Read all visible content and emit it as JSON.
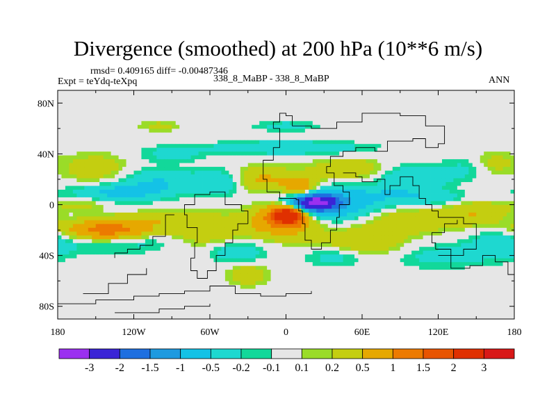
{
  "chart_data": {
    "type": "heatmap",
    "title": "Divergence (smoothed) at 200 hPa (10**6 m/s)",
    "subtitle_stats": "rmsd= 0.409165 diff= -0.00487346",
    "subtitle_expt": "Expt = teYdq-teXpq",
    "subtitle_case": "338_8_MaBP - 338_8_MaBP",
    "subtitle_period": "ANN",
    "xlim": [
      -180,
      180
    ],
    "ylim": [
      -90,
      90
    ],
    "x_ticks": [
      {
        "value": -180,
        "label": "180"
      },
      {
        "value": -120,
        "label": "120W"
      },
      {
        "value": -60,
        "label": "60W"
      },
      {
        "value": 0,
        "label": "0"
      },
      {
        "value": 60,
        "label": "60E"
      },
      {
        "value": 120,
        "label": "120E"
      },
      {
        "value": 180,
        "label": "180"
      }
    ],
    "y_ticks": [
      {
        "value": 80,
        "label": "80N"
      },
      {
        "value": 40,
        "label": "40N"
      },
      {
        "value": 0,
        "label": "0"
      },
      {
        "value": -40,
        "label": "40S"
      },
      {
        "value": -80,
        "label": "80S"
      }
    ],
    "levels": [
      "-3",
      "-2",
      "-1.5",
      "-1",
      "-0.5",
      "-0.2",
      "-0.1",
      "0.1",
      "0.2",
      "0.5",
      "1",
      "1.5",
      "2",
      "3"
    ],
    "colors": [
      "#9B30F0",
      "#3A24D6",
      "#1E6FE0",
      "#1E9AE0",
      "#14C2E6",
      "#1ED8D0",
      "#12D89A",
      "#E6E6E6",
      "#9ADC28",
      "#C4CE10",
      "#E6A800",
      "#EC7A00",
      "#E85400",
      "#E03000",
      "#D81818"
    ],
    "blobs": [
      {
        "lon": 22,
        "lat": 2,
        "rlon": 16,
        "rlat": 6,
        "v": -2.3
      },
      {
        "lon": 20,
        "lat": 2,
        "rlon": 28,
        "rlat": 10,
        "v": -1.2
      },
      {
        "lon": 35,
        "lat": -1,
        "rlon": 45,
        "rlat": 13,
        "v": -0.6
      },
      {
        "lon": 2,
        "lat": -8,
        "rlon": 12,
        "rlat": 7,
        "v": 2.2
      },
      {
        "lon": 0,
        "lat": -8,
        "rlon": 22,
        "rlat": 13,
        "v": 1.0
      },
      {
        "lon": -5,
        "lat": -12,
        "rlon": 32,
        "rlat": 15,
        "v": 0.45
      },
      {
        "lon": 12,
        "lat": 12,
        "rlon": 14,
        "rlat": 9,
        "v": 1.1
      },
      {
        "lon": -20,
        "lat": 20,
        "rlon": 25,
        "rlat": 10,
        "v": 0.6
      },
      {
        "lon": -50,
        "lat": 18,
        "rlon": 20,
        "rlat": 10,
        "v": -0.5
      },
      {
        "lon": -100,
        "lat": 18,
        "rlon": 30,
        "rlat": 10,
        "v": -0.5
      },
      {
        "lon": -150,
        "lat": 28,
        "rlon": 25,
        "rlat": 12,
        "v": 0.4
      },
      {
        "lon": -130,
        "lat": 10,
        "rlon": 30,
        "rlat": 6,
        "v": -0.5
      },
      {
        "lon": -160,
        "lat": 0,
        "rlon": 25,
        "rlat": 6,
        "v": 0.4
      },
      {
        "lon": 100,
        "lat": 22,
        "rlon": 30,
        "rlat": 10,
        "v": -0.5
      },
      {
        "lon": 110,
        "lat": 5,
        "rlon": 50,
        "rlat": 6,
        "v": -0.4
      },
      {
        "lon": 95,
        "lat": -12,
        "rlon": 35,
        "rlat": 10,
        "v": 0.5
      },
      {
        "lon": 150,
        "lat": -5,
        "rlon": 25,
        "rlat": 12,
        "v": 0.5
      },
      {
        "lon": 150,
        "lat": 30,
        "rlon": 20,
        "rlat": 10,
        "v": -0.4
      },
      {
        "lon": 160,
        "lat": 32,
        "rlon": 18,
        "rlat": 10,
        "v": 0.5
      },
      {
        "lon": -140,
        "lat": -20,
        "rlon": 35,
        "rlat": 8,
        "v": 1.4
      },
      {
        "lon": -120,
        "lat": -28,
        "rlon": 50,
        "rlat": 9,
        "v": -0.4
      },
      {
        "lon": -60,
        "lat": -25,
        "rlon": 35,
        "rlat": 12,
        "v": 0.5
      },
      {
        "lon": -40,
        "lat": -35,
        "rlon": 25,
        "rlat": 10,
        "v": -0.5
      },
      {
        "lon": -95,
        "lat": -10,
        "rlon": 40,
        "rlat": 6,
        "v": 0.4
      },
      {
        "lon": 60,
        "lat": -30,
        "rlon": 35,
        "rlat": 12,
        "v": 0.5
      },
      {
        "lon": 40,
        "lat": -40,
        "rlon": 25,
        "rlat": 8,
        "v": -0.4
      },
      {
        "lon": 120,
        "lat": -40,
        "rlon": 40,
        "rlat": 10,
        "v": -0.3
      },
      {
        "lon": 170,
        "lat": -30,
        "rlon": 25,
        "rlat": 12,
        "v": -0.4
      },
      {
        "lon": -30,
        "lat": -55,
        "rlon": 15,
        "rlat": 8,
        "v": 0.45
      },
      {
        "lon": 0,
        "lat": 45,
        "rlon": 60,
        "rlat": 5,
        "v": -0.5
      },
      {
        "lon": 50,
        "lat": 28,
        "rlon": 30,
        "rlat": 8,
        "v": 0.5
      },
      {
        "lon": -90,
        "lat": 40,
        "rlon": 25,
        "rlat": 6,
        "v": -0.3
      },
      {
        "lon": 0,
        "lat": 62,
        "rlon": 25,
        "rlat": 4,
        "v": -0.3
      },
      {
        "lon": -100,
        "lat": 62,
        "rlon": 15,
        "rlat": 4,
        "v": 0.3
      },
      {
        "lon": -150,
        "lat": 5,
        "rlon": 40,
        "rlat": 14,
        "v": -0.2
      },
      {
        "lon": 80,
        "lat": 10,
        "rlon": 40,
        "rlat": 4,
        "v": -0.2
      }
    ]
  }
}
